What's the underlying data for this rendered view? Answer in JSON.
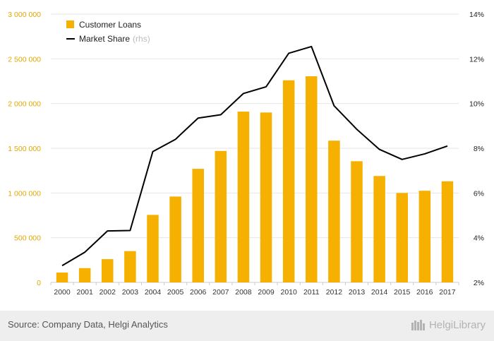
{
  "chart_data": {
    "type": "bar",
    "categories": [
      "2000",
      "2001",
      "2002",
      "2003",
      "2004",
      "2005",
      "2006",
      "2007",
      "2008",
      "2009",
      "2010",
      "2011",
      "2012",
      "2013",
      "2014",
      "2015",
      "2016",
      "2017"
    ],
    "series": [
      {
        "name": "Customer Loans",
        "type": "bar",
        "axis": "left",
        "color": "#f5b000",
        "values": [
          110000,
          160000,
          260000,
          350000,
          755000,
          960000,
          1270000,
          1470000,
          1910000,
          1900000,
          2260000,
          2305000,
          1585000,
          1355000,
          1190000,
          1000000,
          1025000,
          1130000
        ]
      },
      {
        "name": "Market Share",
        "name_suffix": "(rhs)",
        "type": "line",
        "axis": "right",
        "color": "#000000",
        "values": [
          2.75,
          3.35,
          4.3,
          4.32,
          7.85,
          8.4,
          9.35,
          9.5,
          10.45,
          10.75,
          12.25,
          12.55,
          9.9,
          8.85,
          7.95,
          7.5,
          7.75,
          8.1
        ]
      }
    ],
    "left_axis": {
      "ticks": [
        "0",
        "500 000",
        "1 000 000",
        "1 500 000",
        "2 000 000",
        "2 500 000",
        "3 000 000"
      ],
      "min": 0,
      "max": 3000000,
      "color": "#e0a800"
    },
    "right_axis": {
      "ticks": [
        "2%",
        "4%",
        "6%",
        "8%",
        "10%",
        "12%",
        "14%"
      ],
      "min": 2,
      "max": 14
    },
    "grid": true,
    "legend_position": "top-left"
  },
  "footer": {
    "source": "Source: Company Data, Helgi Analytics",
    "logo_text": "HelgiLibrary"
  }
}
